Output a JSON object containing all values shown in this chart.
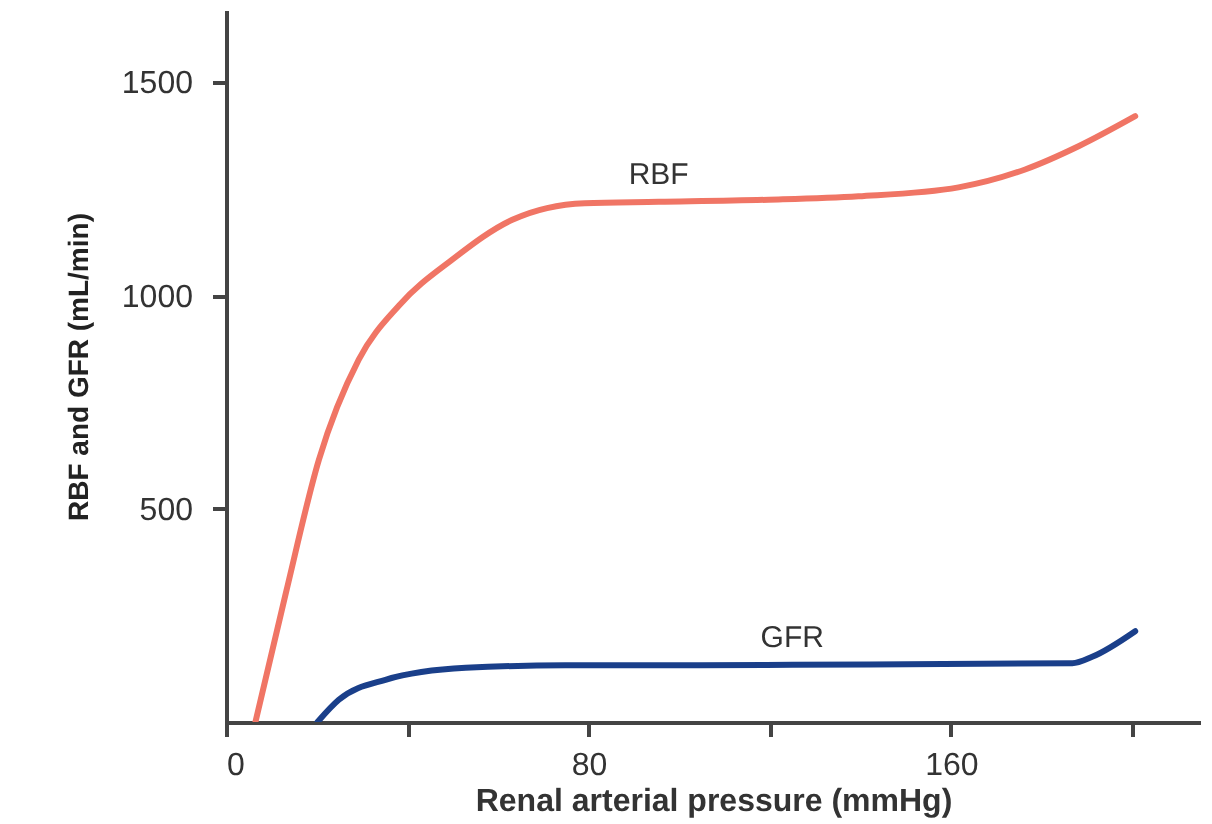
{
  "chart_data": {
    "type": "line",
    "xlabel": "Renal arterial pressure (mmHg)",
    "ylabel": "RBF and GFR (mL/min)",
    "xlim": [
      0,
      215
    ],
    "ylim": [
      0,
      1670
    ],
    "xticks": [
      {
        "value": 0,
        "label": "0"
      },
      {
        "value": 40,
        "label": null
      },
      80,
      {
        "value": 120,
        "label": null
      },
      160,
      {
        "value": 200,
        "label": null
      }
    ],
    "yticks": [
      500,
      1000,
      1500
    ],
    "grid": false,
    "marker": "none",
    "line_style": "solid",
    "series": [
      {
        "name": "RBF",
        "color": "#f07565",
        "x": [
          6.5,
          13.2,
          20.5,
          29.3,
          38.2,
          50,
          63.2,
          79.2,
          95.5,
          119.8,
          139.6,
          161.7,
          176.4,
          188.3,
          200.7
        ],
        "values": [
          0,
          302,
          615,
          850,
          977,
          1085,
          1178,
          1217,
          1220,
          1225,
          1233,
          1254,
          1296,
          1351,
          1421
        ]
      },
      {
        "name": "GFR",
        "color": "#1a3f8a",
        "x": [
          20.2,
          24.9,
          35.2,
          52.9,
          74.9,
          104.4,
          125,
          142,
          186.8,
          191.2,
          200.7
        ],
        "values": [
          0,
          52,
          99,
          127,
          133,
          133,
          134,
          135,
          138,
          153,
          213
        ]
      }
    ]
  }
}
